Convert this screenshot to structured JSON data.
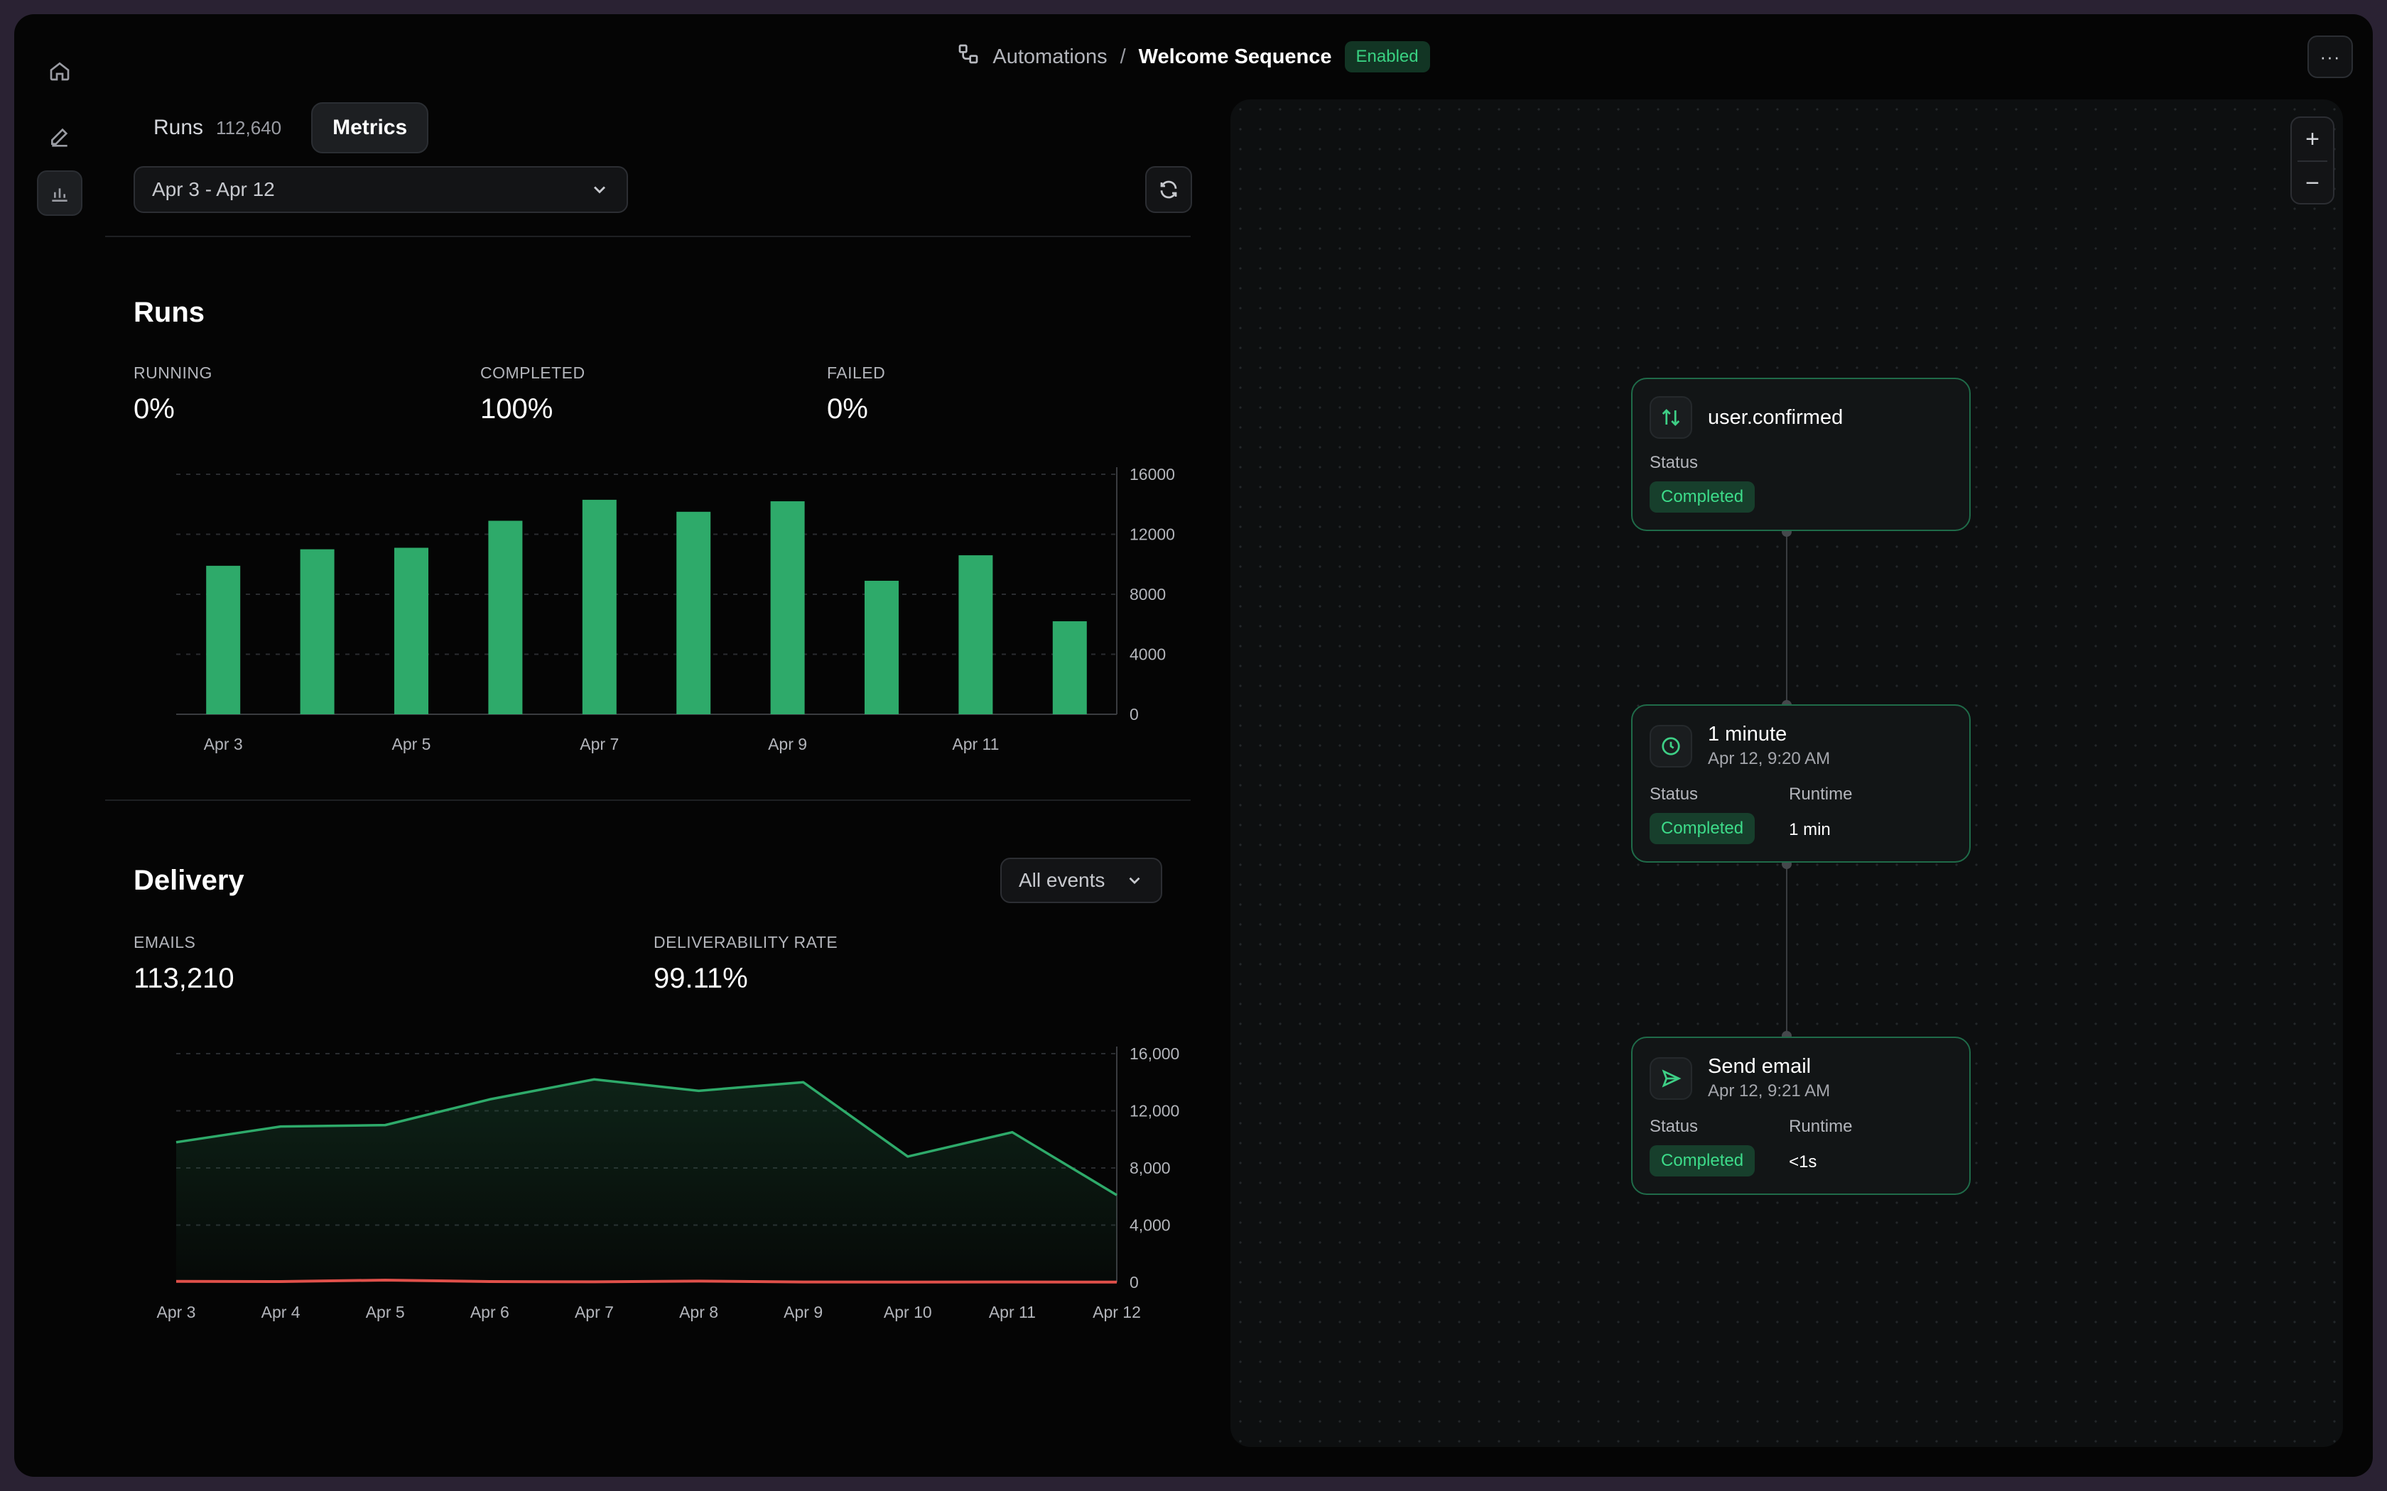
{
  "header": {
    "breadcrumb_parent": "Automations",
    "separator": "/",
    "title": "Welcome Sequence",
    "status": "Enabled",
    "more_label": "···"
  },
  "sidebar": {
    "items": [
      {
        "name": "home-icon",
        "active": false
      },
      {
        "name": "edit-icon",
        "active": false
      },
      {
        "name": "bar-chart-icon",
        "active": true
      }
    ]
  },
  "tabs": [
    {
      "label": "Runs",
      "count": "112,640",
      "active": false
    },
    {
      "label": "Metrics",
      "active": true
    }
  ],
  "filters": {
    "date_range": "Apr 3 - Apr 12",
    "events": "All events"
  },
  "runs_section": {
    "title": "Runs",
    "stats": [
      {
        "label": "RUNNING",
        "value": "0%"
      },
      {
        "label": "COMPLETED",
        "value": "100%"
      },
      {
        "label": "FAILED",
        "value": "0%"
      }
    ]
  },
  "delivery_section": {
    "title": "Delivery",
    "stats": [
      {
        "label": "EMAILS",
        "value": "113,210"
      },
      {
        "label": "DELIVERABILITY RATE",
        "value": "99.11%"
      }
    ]
  },
  "chart_data": [
    {
      "type": "bar",
      "categories": [
        "Apr 3",
        "Apr 4",
        "Apr 5",
        "Apr 6",
        "Apr 7",
        "Apr 8",
        "Apr 9",
        "Apr 10",
        "Apr 11",
        "Apr 12"
      ],
      "x_tick_labels": [
        "Apr 3",
        "",
        "Apr 5",
        "",
        "Apr 7",
        "",
        "Apr 9",
        "",
        "Apr 11",
        ""
      ],
      "values": [
        9900,
        11000,
        11100,
        12900,
        14300,
        13500,
        14200,
        8900,
        10600,
        6200
      ],
      "y_ticks": [
        0,
        4000,
        8000,
        12000,
        16000
      ],
      "y_tick_labels": [
        "0",
        "4000",
        "8000",
        "12000",
        "16000"
      ],
      "ylim": [
        0,
        16000
      ],
      "color": "#2eaa6a",
      "grid": true
    },
    {
      "type": "area",
      "x": [
        "Apr 3",
        "Apr 4",
        "Apr 5",
        "Apr 6",
        "Apr 7",
        "Apr 8",
        "Apr 9",
        "Apr 10",
        "Apr 11",
        "Apr 12"
      ],
      "series": [
        {
          "values": [
            9800,
            10900,
            11000,
            12800,
            14200,
            13400,
            14000,
            8800,
            10500,
            6100
          ],
          "color": "#2eaa6a"
        },
        {
          "values": [
            60,
            50,
            150,
            50,
            30,
            80,
            20,
            10,
            20,
            10
          ],
          "color": "#e0504a"
        }
      ],
      "y_ticks": [
        0,
        4000,
        8000,
        12000,
        16000
      ],
      "y_tick_labels": [
        "0",
        "4,000",
        "8,000",
        "12,000",
        "16,000"
      ],
      "ylim": [
        0,
        16000
      ],
      "grid": true
    }
  ],
  "flow": {
    "nodes": [
      {
        "title": "user.confirmed",
        "icon": "trigger-icon",
        "status_label": "Status",
        "status": "Completed"
      },
      {
        "title": "1 minute",
        "subtitle": "Apr 12, 9:20 AM",
        "icon": "clock-icon",
        "status_label": "Status",
        "status": "Completed",
        "runtime_label": "Runtime",
        "runtime": "1 min"
      },
      {
        "title": "Send email",
        "subtitle": "Apr 12, 9:21 AM",
        "icon": "send-icon",
        "status_label": "Status",
        "status": "Completed",
        "runtime_label": "Runtime",
        "runtime": "<1s"
      }
    ],
    "zoom_in": "+",
    "zoom_out": "−"
  }
}
